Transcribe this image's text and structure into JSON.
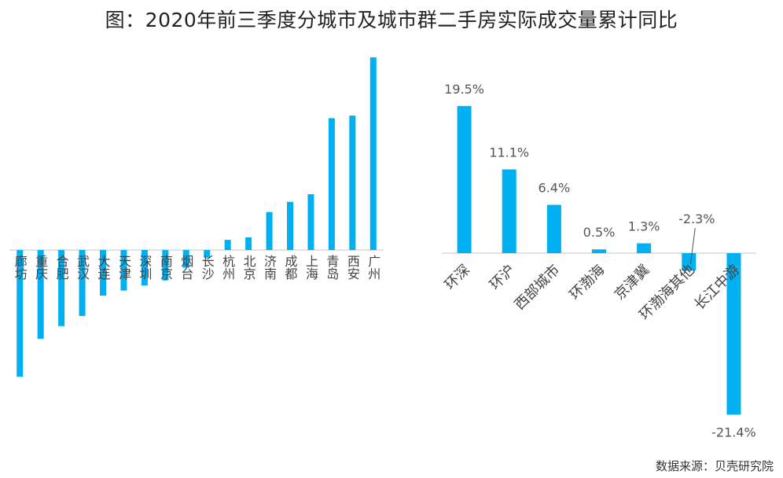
{
  "title": "图：2020年前三季度分城市及城市群二手房实际成交量累计同比",
  "source": "数据来源：贝壳研究院",
  "colors": {
    "bar": "#00B0F0",
    "axis": "#d9d9d9",
    "text": "#444444"
  },
  "chart_data": [
    {
      "type": "bar",
      "categories": [
        "廊坊",
        "重庆",
        "合肥",
        "武汉",
        "大连",
        "天津",
        "深圳",
        "南京",
        "烟台",
        "长沙",
        "杭州",
        "北京",
        "济南",
        "成都",
        "上海",
        "青岛",
        "西安",
        "广州"
      ],
      "values": [
        -25,
        -17.5,
        -15,
        -13,
        -9,
        -8,
        -7,
        -6,
        -3.5,
        -1.5,
        2,
        2.5,
        7.5,
        9.5,
        11,
        26,
        26.5,
        38
      ],
      "ylim": [
        -30,
        40
      ],
      "data_labels": false
    },
    {
      "type": "bar",
      "categories": [
        "环深",
        "环沪",
        "西部城市",
        "环渤海",
        "京津冀",
        "环渤海其他",
        "长江中游"
      ],
      "values": [
        19.5,
        11.1,
        6.4,
        0.5,
        1.3,
        -2.3,
        -21.4
      ],
      "value_labels": [
        "19.5%",
        "11.1%",
        "6.4%",
        "0.5%",
        "1.3%",
        "-2.3%",
        "-21.4%"
      ],
      "ylim": [
        -24,
        22
      ]
    }
  ]
}
